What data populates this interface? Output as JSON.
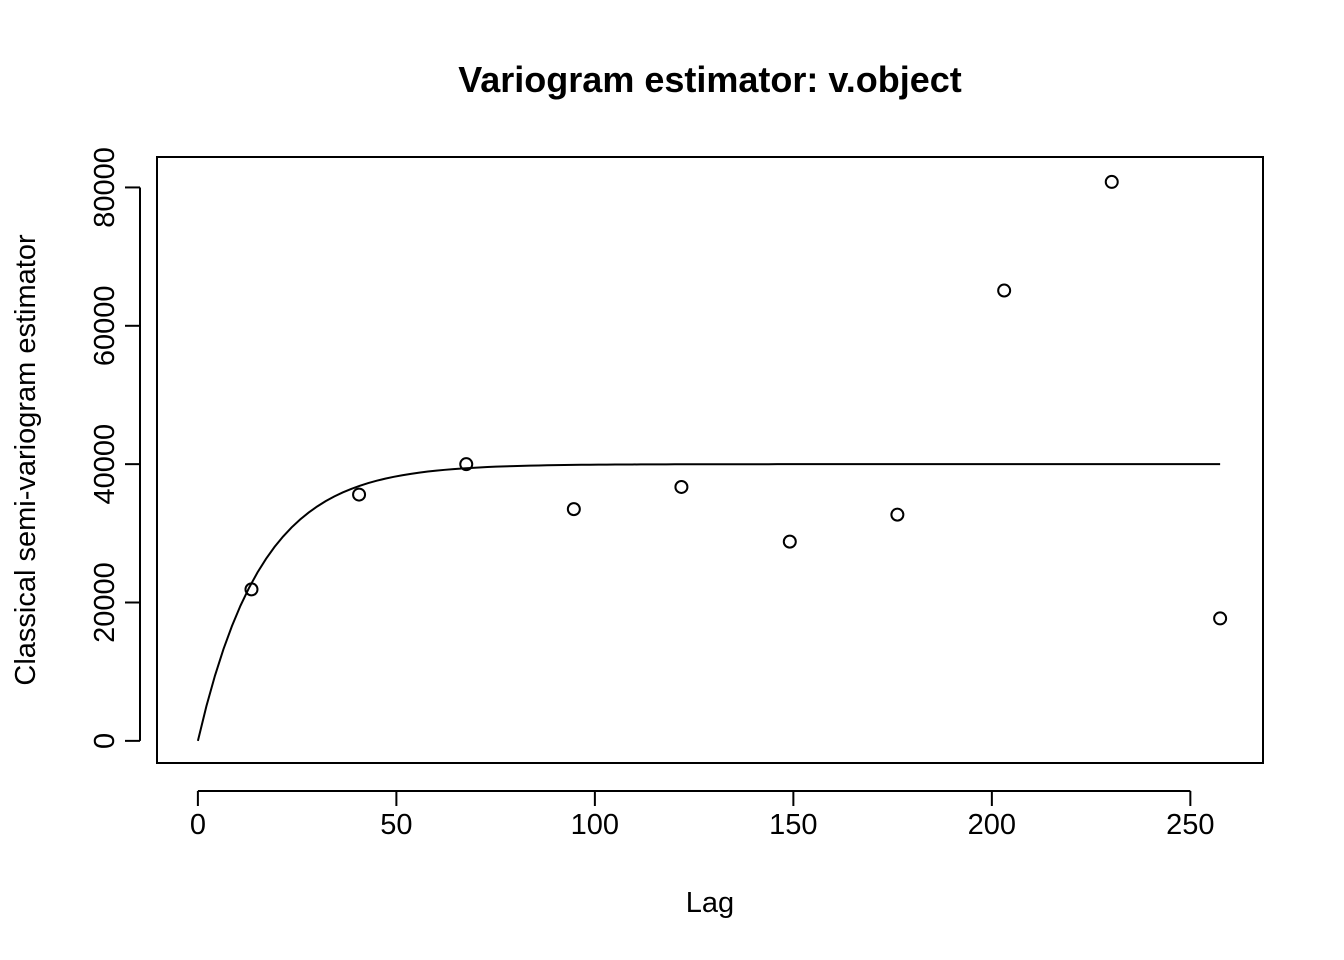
{
  "chart_data": {
    "type": "scatter",
    "title": "Variogram estimator: v.object",
    "xlabel": "Lag",
    "ylabel": "Classical semi-variogram estimator",
    "xlim": [
      -10.3,
      268.3
    ],
    "ylim": [
      -3200,
      84400
    ],
    "x_ticks": [
      0,
      50,
      100,
      150,
      200,
      250
    ],
    "x_tick_labels": [
      "0",
      "50",
      "100",
      "150",
      "200",
      "250"
    ],
    "y_ticks": [
      0,
      20000,
      40000,
      60000,
      80000
    ],
    "y_tick_labels": [
      "0",
      "20000",
      "40000",
      "60000",
      "80000"
    ],
    "grid": false,
    "legend": "none",
    "series": [
      {
        "marker": "open-circle",
        "x": [
          13.5,
          40.6,
          67.6,
          94.7,
          121.8,
          149.1,
          176.2,
          203.1,
          230.2,
          257.5
        ],
        "y": [
          21900,
          35600,
          40000,
          33500,
          36700,
          28800,
          32700,
          65100,
          80800,
          17700
        ]
      }
    ],
    "fitted_curve": {
      "model": "exponential",
      "nugget": 0,
      "sill": 40000,
      "range": 16,
      "x_from": 0,
      "x_to": 257.5
    },
    "colors": {
      "foreground": "#000000",
      "background": "#ffffff"
    }
  }
}
